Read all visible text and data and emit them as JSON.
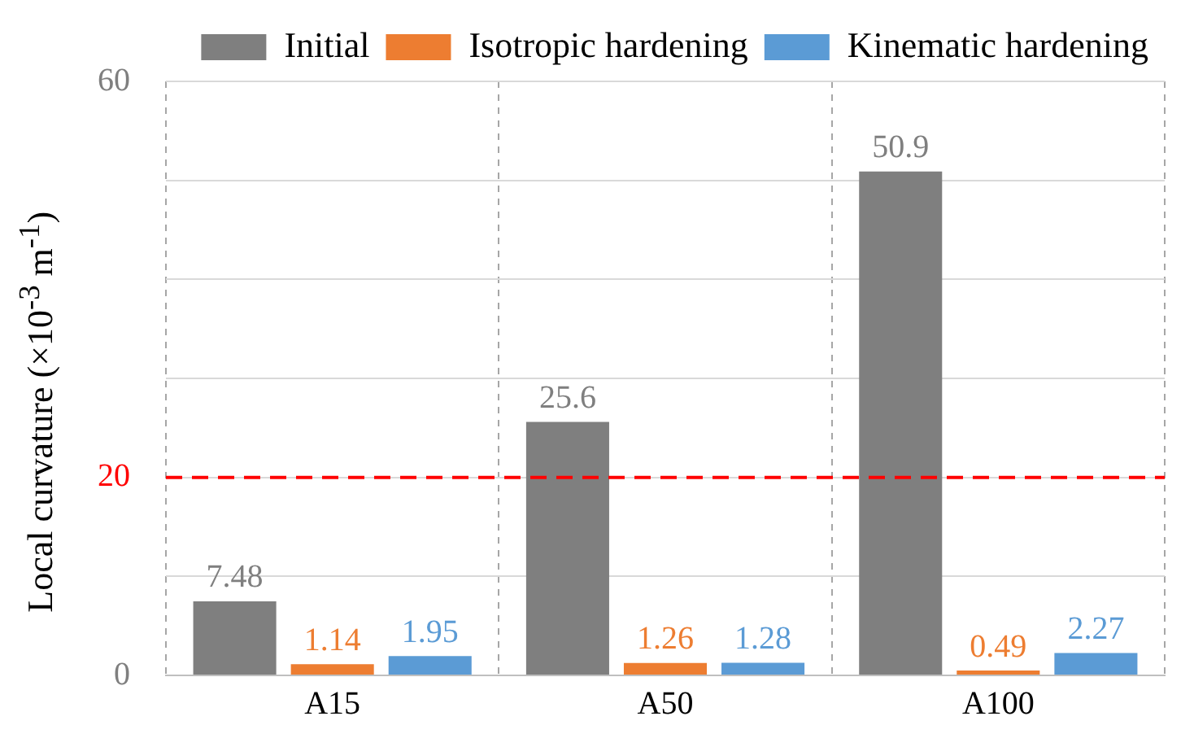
{
  "chart_data": {
    "type": "bar",
    "ylabel": "Local curvature (×10$^{-3}$ m$^{-1}$)",
    "categories": [
      "A15",
      "A50",
      "A100"
    ],
    "series": [
      {
        "name": "Initial",
        "color": "#7f7f7f",
        "values": [
          7.48,
          25.6,
          50.9
        ]
      },
      {
        "name": "Isotropic hardening",
        "color": "#ed7d31",
        "values": [
          1.14,
          1.26,
          0.49
        ]
      },
      {
        "name": "Kinematic hardening",
        "color": "#5b9bd5",
        "values": [
          1.95,
          1.28,
          2.27
        ]
      }
    ],
    "ylim": [
      0,
      60
    ],
    "yticks": [
      0,
      {
        "value": 10,
        "label": null
      },
      {
        "value": 20,
        "label": null
      },
      {
        "value": 30,
        "label": null
      },
      {
        "value": 40,
        "label": null
      },
      {
        "value": 50,
        "label": null
      },
      60
    ],
    "ref_lines": [
      {
        "axis": "y",
        "value": 20,
        "label": "20",
        "color": "#ff0000",
        "line_style": "dashed"
      }
    ],
    "grid": true,
    "legend": "top",
    "data_labels": true
  }
}
